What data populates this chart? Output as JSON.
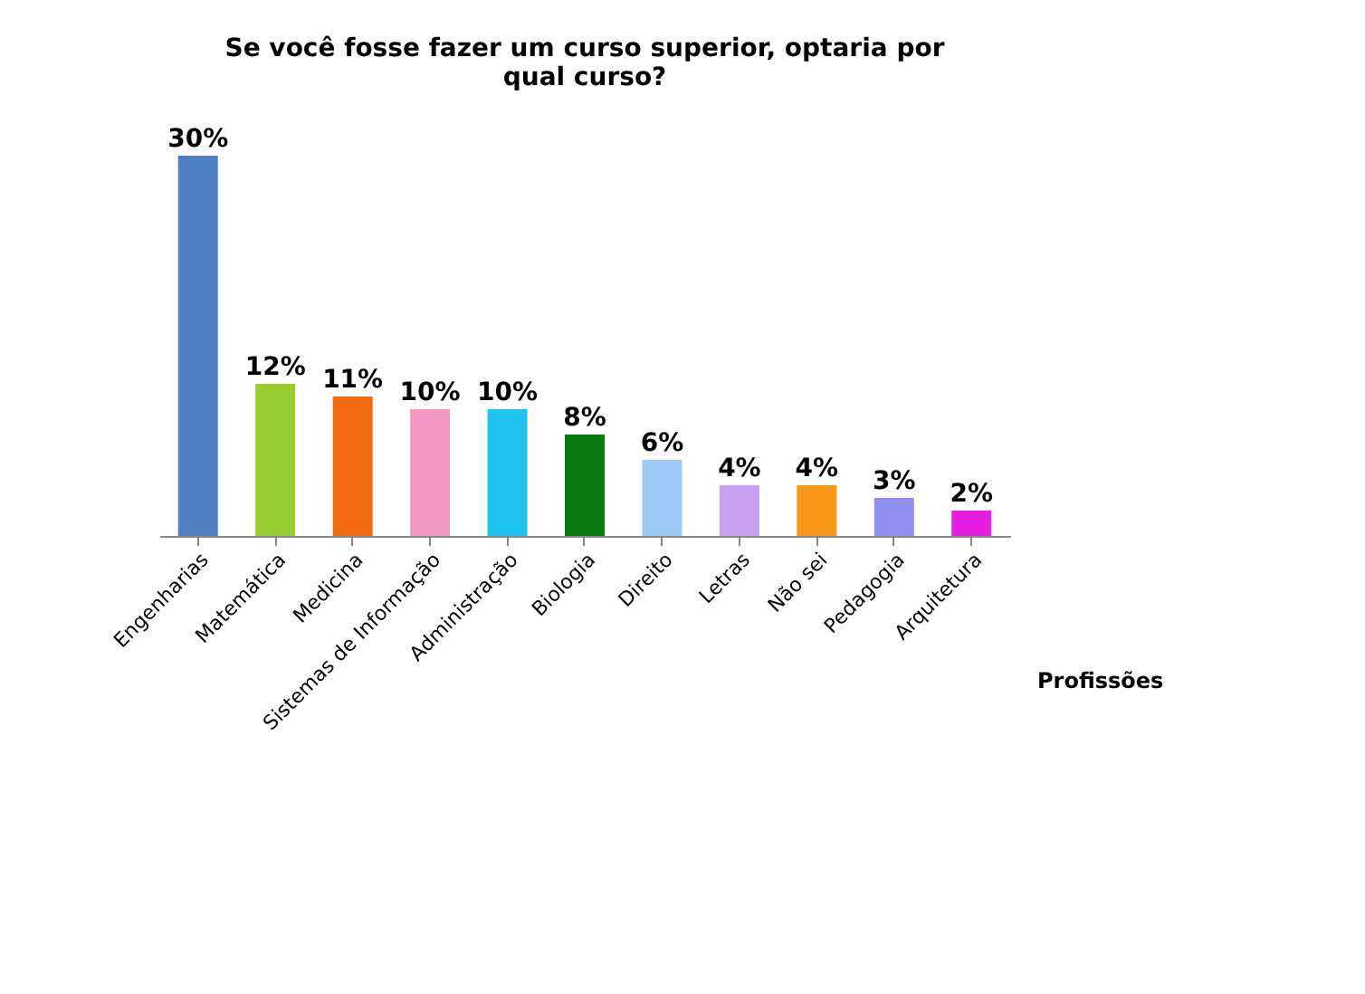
{
  "chart_data": {
    "type": "bar",
    "title": [
      "Se você fosse fazer um curso superior, optaria por",
      "qual curso?"
    ],
    "xlabel": "Profissões",
    "categories": [
      "Engenharias",
      "Matemática",
      "Medicina",
      "Sistemas de Informação",
      "Administração",
      "Biologia",
      "Direito",
      "Letras",
      "Não sei",
      "Pedagogia",
      "Arquitetura"
    ],
    "values": [
      30,
      12,
      11,
      10,
      10,
      8,
      6,
      4,
      4,
      3,
      2
    ],
    "value_labels": [
      "30%",
      "12%",
      "11%",
      "10%",
      "10%",
      "8%",
      "6%",
      "4%",
      "4%",
      "3%",
      "2%"
    ],
    "colors": [
      "#4f7fc0",
      "#9acd32",
      "#f26a10",
      "#f49ac2",
      "#1fc3f0",
      "#0a7a12",
      "#9ccaf5",
      "#c7a0f2",
      "#fb9a1a",
      "#8f8ff0",
      "#e61ee0"
    ],
    "grid": false,
    "tick_labels": "x"
  }
}
